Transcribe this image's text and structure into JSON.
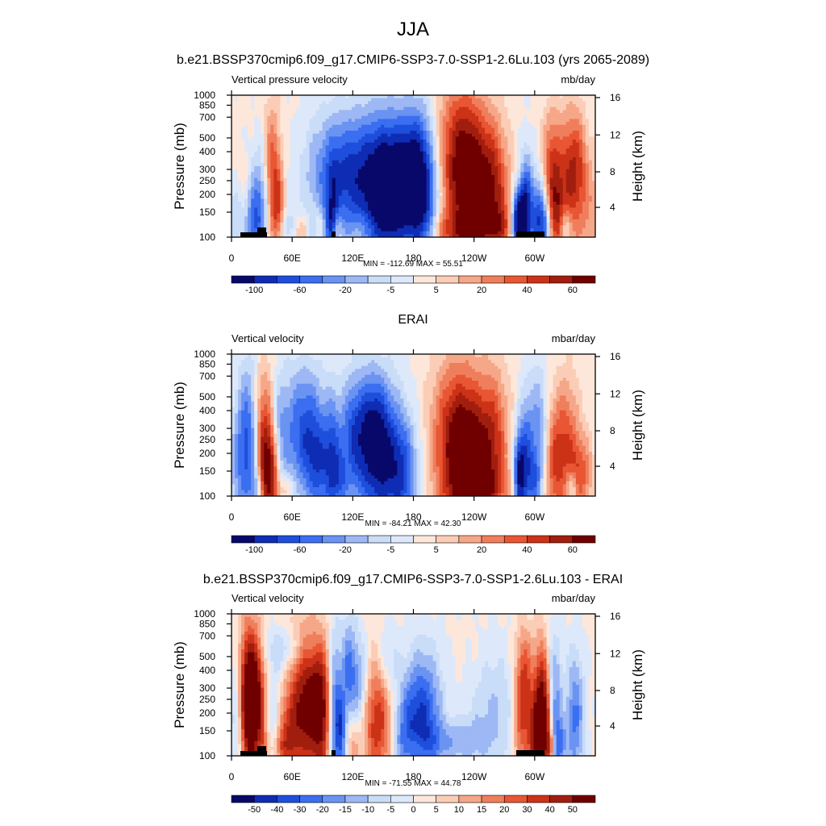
{
  "figure": {
    "title": "JJA"
  },
  "chart_data": [
    {
      "type": "heatmap",
      "title": "b.e21.BSSP370cmip6.f09_g17.CMIP6-SSP3-7.0-SSP1-2.6Lu.103 (yrs 2065-2089)",
      "left_label": "Vertical pressure velocity",
      "units": "mb/day",
      "ylabel": "Pressure (mb)",
      "ylabel_right": "Height (km)",
      "x_ticks": [
        "0",
        "60E",
        "120E",
        "180",
        "120W",
        "60W"
      ],
      "y_ticks": [
        "100",
        "150",
        "200",
        "250",
        "300",
        "400",
        "500",
        "700",
        "850",
        "1000"
      ],
      "y2_ticks": [
        "16",
        "12",
        "8",
        "4"
      ],
      "stats": "MIN = -112.69  MAX =  55.51",
      "colorbar_labels": [
        "-100",
        "-60",
        "-20",
        "-5",
        "5",
        "20",
        "40",
        "60"
      ],
      "topography": true
    },
    {
      "type": "heatmap",
      "title": "ERAI",
      "left_label": "Vertical velocity",
      "units": "mbar/day",
      "ylabel": "Pressure (mb)",
      "ylabel_right": "Height (km)",
      "x_ticks": [
        "0",
        "60E",
        "120E",
        "180",
        "120W",
        "60W"
      ],
      "y_ticks": [
        "100",
        "150",
        "200",
        "250",
        "300",
        "400",
        "500",
        "700",
        "850",
        "1000"
      ],
      "y2_ticks": [
        "16",
        "12",
        "8",
        "4"
      ],
      "stats": "MIN = -84.21  MAX =  42.30",
      "colorbar_labels": [
        "-100",
        "-60",
        "-20",
        "-5",
        "5",
        "20",
        "40",
        "60"
      ],
      "topography": false
    },
    {
      "type": "heatmap",
      "title": "b.e21.BSSP370cmip6.f09_g17.CMIP6-SSP3-7.0-SSP1-2.6Lu.103 - ERAI",
      "left_label": "Vertical velocity",
      "units": "mbar/day",
      "ylabel": "Pressure (mb)",
      "ylabel_right": "Height (km)",
      "x_ticks": [
        "0",
        "60E",
        "120E",
        "180",
        "120W",
        "60W"
      ],
      "y_ticks": [
        "100",
        "150",
        "200",
        "250",
        "300",
        "400",
        "500",
        "700",
        "850",
        "1000"
      ],
      "y2_ticks": [
        "16",
        "12",
        "8",
        "4"
      ],
      "stats": "MIN = -71.55  MAX =  44.78",
      "colorbar_labels": [
        "-50",
        "-40",
        "-30",
        "-20",
        "-15",
        "-10",
        "-5",
        "0",
        "5",
        "10",
        "15",
        "20",
        "30",
        "40",
        "50"
      ],
      "topography": true
    }
  ],
  "colors": {
    "colorbar": [
      "#08086b",
      "#0f2cb4",
      "#1e4fdc",
      "#3b6ef0",
      "#6a93f2",
      "#9db8f4",
      "#c9dcf8",
      "#dde9fb",
      "#fde7da",
      "#fbcdb6",
      "#f6a788",
      "#ef7f5c",
      "#e85634",
      "#cc3217",
      "#a11e0f",
      "#700000"
    ]
  }
}
